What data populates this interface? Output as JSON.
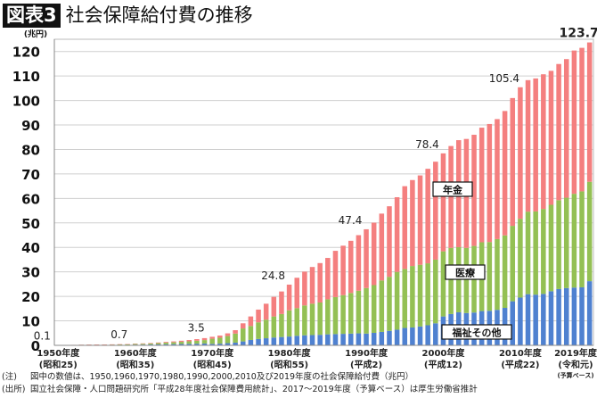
{
  "header": {
    "figure_label": "図表3",
    "title": "社会保障給付費の推移"
  },
  "notes": [
    {
      "key": "(注)",
      "text": "図中の数値は、1950,1960,1970,1980,1990,2000,2010及び2019年度の社会保障給付費（兆円）"
    },
    {
      "key": "(出所)",
      "text": "国立社会保障・人口問題研究所「平成28年度社会保障費用統計」、2017～2019年度（予算ベース）は厚生労働省推計"
    }
  ],
  "chart_data": {
    "type": "bar",
    "stacked": true,
    "title": "社会保障給付費の推移",
    "ylabel": "(兆円)",
    "ylim": [
      0,
      125
    ],
    "yticks": [
      0,
      10,
      20,
      30,
      40,
      50,
      60,
      70,
      80,
      90,
      100,
      110,
      120
    ],
    "grid": true,
    "x_start_year": 1950,
    "x_end_year": 2019,
    "xtick_labels": [
      {
        "year": 1950,
        "line1": "1950年度",
        "line2": "(昭和25)"
      },
      {
        "year": 1960,
        "line1": "1960年度",
        "line2": "(昭和35)"
      },
      {
        "year": 1970,
        "line1": "1970年度",
        "line2": "(昭和45)"
      },
      {
        "year": 1980,
        "line1": "1980年度",
        "line2": "(昭和55)"
      },
      {
        "year": 1990,
        "line1": "1990年度",
        "line2": "(平成2)"
      },
      {
        "year": 2000,
        "line1": "2000年度",
        "line2": "(平成12)"
      },
      {
        "year": 2010,
        "line1": "2010年度",
        "line2": "(平成22)"
      },
      {
        "year": 2019,
        "line1": "2019年度",
        "line2": "(令和元)",
        "line3": "(予算ベース)"
      }
    ],
    "data_labels": [
      {
        "year": 1950,
        "text": "0.1"
      },
      {
        "year": 1960,
        "text": "0.7"
      },
      {
        "year": 1970,
        "text": "3.5"
      },
      {
        "year": 1980,
        "text": "24.8"
      },
      {
        "year": 1990,
        "text": "47.4"
      },
      {
        "year": 2000,
        "text": "78.4"
      },
      {
        "year": 2010,
        "text": "105.4"
      },
      {
        "year": 2019,
        "text": "123.7",
        "bold": true
      }
    ],
    "series": [
      {
        "name": "福祉その他",
        "color": "#4f81d0",
        "values": [
          0.05,
          0.06,
          0.07,
          0.09,
          0.1,
          0.11,
          0.11,
          0.12,
          0.14,
          0.16,
          0.28,
          0.3,
          0.34,
          0.39,
          0.44,
          0.49,
          0.54,
          0.6,
          0.67,
          0.75,
          0.6,
          0.7,
          0.9,
          1.1,
          1.6,
          2.2,
          2.6,
          2.9,
          3.2,
          3.4,
          3.6,
          3.9,
          4.1,
          4.2,
          4.3,
          4.5,
          4.6,
          4.7,
          4.8,
          4.9,
          4.8,
          5.1,
          5.5,
          5.9,
          6.4,
          7.1,
          7.3,
          7.7,
          8.2,
          9.0,
          11.8,
          12.8,
          13.5,
          13.2,
          13.4,
          14.0,
          14.1,
          14.5,
          15.3,
          18.0,
          19.5,
          20.9,
          20.7,
          21.0,
          22.1,
          23.0,
          23.4,
          23.6,
          23.7,
          26.2
        ]
      },
      {
        "name": "医療",
        "color": "#94c054",
        "values": [
          0.06,
          0.08,
          0.1,
          0.13,
          0.15,
          0.17,
          0.18,
          0.2,
          0.23,
          0.26,
          0.27,
          0.33,
          0.42,
          0.52,
          0.65,
          0.75,
          0.9,
          1.04,
          1.2,
          1.4,
          2.1,
          2.4,
          2.9,
          3.7,
          5.3,
          5.7,
          6.8,
          7.6,
          8.6,
          9.4,
          10.7,
          11.3,
          12.2,
          12.8,
          13.2,
          14.3,
          15.1,
          15.8,
          16.6,
          17.4,
          18.6,
          19.5,
          21.0,
          22.1,
          23.6,
          24.1,
          25.1,
          25.2,
          25.3,
          26.0,
          26.6,
          27.0,
          26.6,
          26.6,
          27.2,
          28.1,
          28.1,
          28.9,
          29.6,
          30.8,
          32.2,
          33.7,
          34.0,
          34.7,
          35.3,
          36.3,
          36.9,
          38.3,
          39.2,
          40.6
        ]
      },
      {
        "name": "年金",
        "color": "#f47f7f",
        "values": [
          0.02,
          0.02,
          0.03,
          0.04,
          0.06,
          0.07,
          0.08,
          0.09,
          0.11,
          0.13,
          0.15,
          0.17,
          0.2,
          0.25,
          0.3,
          0.36,
          0.44,
          0.54,
          0.67,
          0.8,
          0.8,
          0.9,
          1.1,
          1.4,
          2.1,
          3.9,
          5.2,
          6.5,
          8.0,
          9.2,
          10.5,
          12.4,
          13.8,
          15.0,
          16.1,
          16.9,
          18.9,
          20.2,
          21.3,
          22.7,
          24.0,
          25.5,
          27.3,
          28.8,
          30.5,
          33.8,
          35.1,
          36.5,
          38.6,
          40.0,
          40.0,
          41.6,
          43.7,
          44.5,
          45.4,
          46.8,
          48.2,
          49.0,
          50.8,
          52.2,
          53.7,
          53.7,
          54.3,
          55.0,
          54.7,
          55.6,
          56.6,
          58.5,
          58.6,
          56.9
        ]
      }
    ]
  }
}
